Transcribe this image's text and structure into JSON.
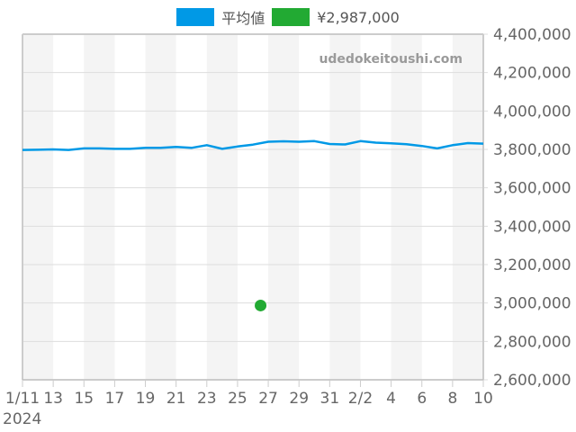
{
  "legend": {
    "items": [
      {
        "label": "平均値",
        "color": "#0099e6"
      },
      {
        "label": "¥2,987,000",
        "color": "#22aa33"
      }
    ]
  },
  "watermark": "udedokeitoushi.com",
  "chart_data": {
    "type": "line",
    "title": "",
    "xlabel": "",
    "ylabel": "",
    "x_start_label": "1/11",
    "x_year_label": "2024",
    "x_tick_labels": [
      "1/11",
      "13",
      "15",
      "17",
      "19",
      "21",
      "23",
      "25",
      "27",
      "29",
      "31",
      "2/2",
      "4",
      "6",
      "8",
      "10"
    ],
    "y_tick_labels": [
      "4,400,000",
      "4,200,000",
      "4,000,000",
      "3,800,000",
      "3,600,000",
      "3,400,000",
      "3,200,000",
      "3,000,000",
      "2,800,000",
      "2,600,000"
    ],
    "ylim": [
      2600000,
      4400000
    ],
    "x_days": 30,
    "grid": true,
    "legend_position": "top",
    "series": [
      {
        "name": "平均値",
        "color": "#0099e6",
        "days": [
          0,
          1,
          2,
          3,
          4,
          5,
          6,
          7,
          8,
          9,
          10,
          11,
          12,
          13,
          14,
          15,
          16,
          17,
          18,
          19,
          20,
          21,
          22,
          23,
          24,
          25,
          26,
          27,
          28,
          29,
          30
        ],
        "values": [
          3797000,
          3798000,
          3800000,
          3797000,
          3805000,
          3805000,
          3803000,
          3803000,
          3808000,
          3808000,
          3813000,
          3808000,
          3822000,
          3803000,
          3815000,
          3825000,
          3840000,
          3842000,
          3840000,
          3843000,
          3828000,
          3826000,
          3843000,
          3835000,
          3832000,
          3827000,
          3818000,
          3805000,
          3822000,
          3833000,
          3830000
        ]
      },
      {
        "name": "¥2,987,000",
        "color": "#22aa33",
        "type": "point",
        "points": [
          {
            "day": 15.5,
            "value": 2987000
          }
        ]
      }
    ]
  }
}
